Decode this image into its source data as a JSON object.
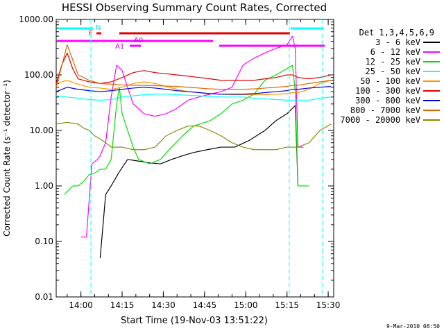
{
  "chart_data": {
    "type": "line",
    "title": "HESSI Observing Summary Count Rates, Corrected",
    "xlabel": "Start Time (19-Nov-03 13:51:22)",
    "ylabel": "Corrected Count Rate (s⁻¹ detector⁻¹)",
    "yscale": "log",
    "xlim_minutes_from_1351": [
      0,
      101
    ],
    "ylim": [
      0.01,
      1000
    ],
    "x_tick_labels": [
      "14:00",
      "14:15",
      "14:30",
      "14:45",
      "15:00",
      "15:15",
      "15:30"
    ],
    "y_tick_labels": [
      "0.01",
      "0.10",
      "1.00",
      "10.00",
      "100.00",
      "1000.00"
    ],
    "legend_title": "Det 1,3,4,5,6,9",
    "legend_placement": "right",
    "flag_labels": [
      "N",
      "F",
      "A0",
      "A1"
    ],
    "date_stamp": "9-Mar-2010 08:50",
    "series": [
      {
        "name": "3 - 6 keV",
        "color": "#000000",
        "x": [
          0,
          14,
          16,
          18,
          20,
          23,
          26,
          30,
          34,
          38,
          42,
          46,
          50,
          55,
          60,
          65,
          70,
          76,
          80,
          84,
          86,
          87,
          88
        ],
        "y": [
          null,
          null,
          0.05,
          0.7,
          1.0,
          1.8,
          3.0,
          2.8,
          2.6,
          2.5,
          3.0,
          3.5,
          4.0,
          4.5,
          5.0,
          5.0,
          6.5,
          10,
          15,
          20,
          25,
          28,
          1.0
        ]
      },
      {
        "name": "6 - 12 keV",
        "color": "#ff00ff",
        "x": [
          9,
          10,
          11,
          13,
          15,
          16,
          18,
          20,
          22,
          24,
          26,
          28,
          32,
          36,
          40,
          44,
          48,
          52,
          56,
          60,
          64,
          68,
          72,
          76,
          80,
          84,
          86,
          87,
          88,
          90
        ],
        "y": [
          0.12,
          0.12,
          0.12,
          2.5,
          3.0,
          3.5,
          6.0,
          40,
          150,
          120,
          60,
          30,
          20,
          18,
          20,
          25,
          35,
          40,
          45,
          50,
          60,
          150,
          200,
          250,
          300,
          350,
          500,
          300,
          5,
          5
        ]
      },
      {
        "name": "12 - 25 keV",
        "color": "#00dd00",
        "x": [
          3,
          6,
          8,
          10,
          12,
          14,
          16,
          18,
          20,
          22,
          23,
          24,
          26,
          28,
          30,
          34,
          38,
          42,
          46,
          50,
          56,
          60,
          64,
          68,
          72,
          76,
          80,
          84,
          86,
          87,
          88,
          92
        ],
        "y": [
          0.7,
          1.0,
          1.0,
          1.2,
          1.6,
          1.7,
          2.0,
          2.0,
          3.0,
          30,
          60,
          20,
          10,
          5,
          3,
          2.5,
          3.0,
          5.0,
          8,
          12,
          15,
          20,
          30,
          35,
          45,
          80,
          100,
          130,
          150,
          50,
          1.0,
          1.0
        ]
      },
      {
        "name": "25 - 50 keV",
        "color": "#00ffff",
        "x": [
          0,
          4,
          8,
          12,
          16,
          20,
          24,
          28,
          32,
          36,
          40,
          44,
          48,
          52,
          56,
          60,
          64,
          68,
          72,
          76,
          80,
          84,
          86,
          88,
          92,
          96,
          100
        ],
        "y": [
          42,
          40,
          38,
          36,
          35,
          36,
          40,
          42,
          44,
          45,
          45,
          44,
          43,
          42,
          41,
          40,
          40,
          40,
          38,
          37,
          36,
          35,
          35,
          35,
          35,
          38,
          40
        ]
      },
      {
        "name": "50 - 100 keV",
        "color": "#ff9900",
        "x": [
          0,
          4,
          8,
          12,
          16,
          20,
          24,
          28,
          32,
          36,
          40,
          44,
          48,
          52,
          56,
          60,
          64,
          68,
          72,
          76,
          80,
          84,
          86,
          88,
          92,
          96,
          100
        ],
        "y": [
          70,
          80,
          68,
          60,
          58,
          55,
          60,
          70,
          75,
          70,
          62,
          55,
          50,
          48,
          46,
          45,
          44,
          44,
          44,
          44,
          45,
          46,
          48,
          48,
          55,
          70,
          80
        ]
      },
      {
        "name": "100 - 300 keV",
        "color": "#dd0000",
        "x": [
          0,
          2,
          4,
          6,
          8,
          12,
          16,
          20,
          24,
          28,
          32,
          36,
          40,
          44,
          48,
          52,
          56,
          60,
          64,
          68,
          72,
          76,
          80,
          84,
          86,
          88,
          92,
          96,
          100
        ],
        "y": [
          70,
          150,
          250,
          130,
          85,
          75,
          70,
          75,
          90,
          110,
          120,
          110,
          105,
          100,
          95,
          90,
          85,
          80,
          80,
          80,
          80,
          85,
          90,
          100,
          100,
          90,
          85,
          90,
          100
        ]
      },
      {
        "name": "300 - 800 keV",
        "color": "#0000dd",
        "x": [
          0,
          4,
          8,
          12,
          16,
          20,
          24,
          28,
          32,
          36,
          40,
          44,
          48,
          52,
          56,
          60,
          64,
          68,
          72,
          76,
          80,
          84,
          86,
          88,
          92,
          96,
          100
        ],
        "y": [
          50,
          60,
          55,
          52,
          50,
          52,
          55,
          58,
          60,
          58,
          55,
          52,
          50,
          48,
          46,
          45,
          45,
          45,
          46,
          48,
          50,
          52,
          55,
          55,
          58,
          60,
          62
        ]
      },
      {
        "name": "800 - 7000 keV",
        "color": "#dd6600",
        "x": [
          0,
          4,
          8,
          12,
          16,
          20,
          24,
          28,
          32,
          36,
          40,
          44,
          48,
          52,
          56,
          60,
          64,
          68,
          72,
          76,
          80,
          84,
          86,
          88,
          92,
          96,
          100
        ],
        "y": [
          60,
          350,
          100,
          80,
          70,
          68,
          66,
          65,
          65,
          64,
          63,
          62,
          60,
          58,
          56,
          55,
          55,
          55,
          56,
          58,
          60,
          62,
          65,
          65,
          70,
          75,
          80
        ]
      },
      {
        "name": "7000 - 20000 keV",
        "color": "#888800",
        "x": [
          0,
          4,
          8,
          10,
          12,
          14,
          16,
          18,
          20,
          22,
          24,
          28,
          32,
          36,
          40,
          44,
          48,
          52,
          56,
          60,
          64,
          68,
          72,
          76,
          80,
          84,
          86,
          88,
          92,
          96,
          100
        ],
        "y": [
          13,
          14,
          13,
          11,
          10,
          8,
          7,
          6,
          5,
          5,
          5,
          4.5,
          4.5,
          5,
          8,
          10,
          12,
          12,
          10,
          8,
          6,
          5,
          4.5,
          4.5,
          4.5,
          5,
          5,
          5,
          6,
          10,
          13
        ]
      }
    ]
  }
}
